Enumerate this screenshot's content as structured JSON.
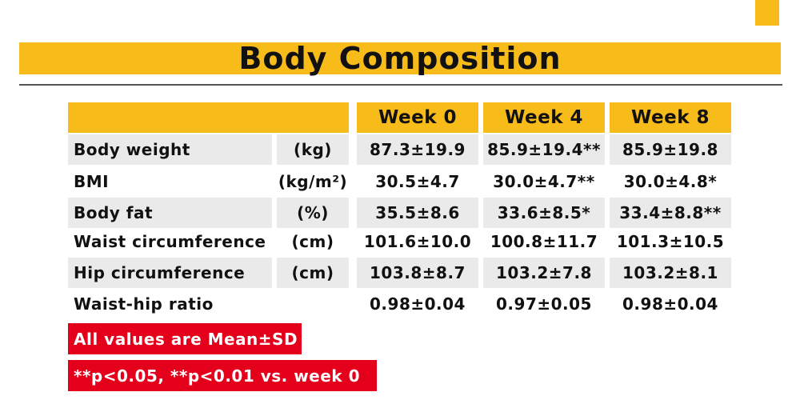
{
  "title": "Body Composition",
  "colors": {
    "accent": "#f8bc1a",
    "note": "#e4001b",
    "row_bg": "#eaeaea"
  },
  "table": {
    "columns": [
      "Week 0",
      "Week 4",
      "Week 8"
    ],
    "rows": [
      {
        "label": "Body weight",
        "unit": "(kg)",
        "values": [
          "87.3±19.9",
          "85.9±19.4**",
          "85.9±19.8"
        ]
      },
      {
        "label": "BMI",
        "unit": "(kg/m²)",
        "values": [
          "30.5±4.7",
          "30.0±4.7**",
          "30.0±4.8*"
        ]
      },
      {
        "label": "Body fat",
        "unit": "(%)",
        "values": [
          "35.5±8.6",
          "33.6±8.5*",
          "33.4±8.8**"
        ]
      },
      {
        "label": "Waist circumference",
        "unit": "(cm)",
        "values": [
          "101.6±10.0",
          "100.8±11.7",
          "101.3±10.5"
        ]
      },
      {
        "label": "Hip circumference",
        "unit": "(cm)",
        "values": [
          "103.8±8.7",
          "103.2±7.8",
          "103.2±8.1"
        ]
      },
      {
        "label": "Waist-hip ratio",
        "unit": "",
        "values": [
          "0.98±0.04",
          "0.97±0.05",
          "0.98±0.04"
        ]
      }
    ]
  },
  "notes": [
    "All values are Mean±SD",
    "**p<0.05, **p<0.01 vs. week 0"
  ]
}
